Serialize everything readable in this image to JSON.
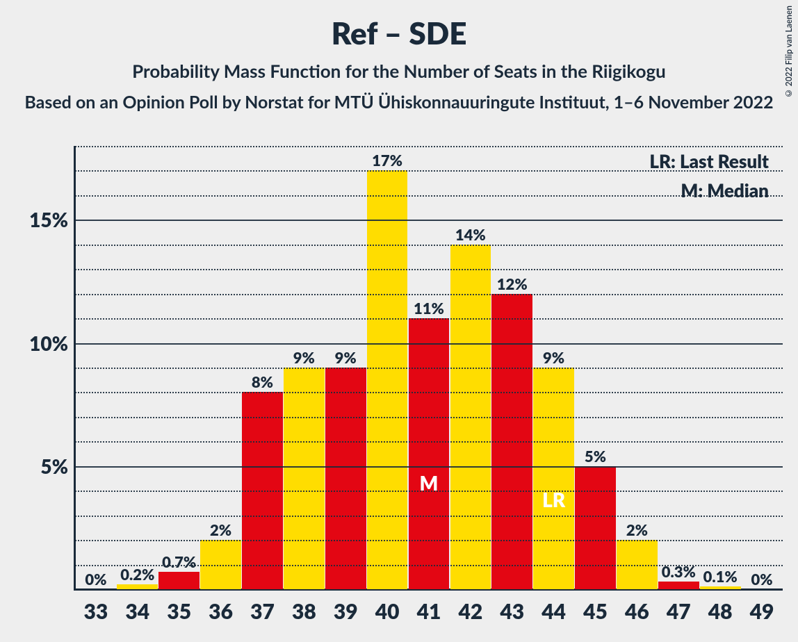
{
  "copyright": "© 2022 Filip van Laenen",
  "title": "Ref – SDE",
  "subtitle": "Probability Mass Function for the Number of Seats in the Riigikogu",
  "subtitle2": "Based on an Opinion Poll by Norstat for MTÜ Ühiskonnauuringute Instituut, 1–6 November 2022",
  "legend": {
    "lr": "LR: Last Result",
    "m": "M: Median"
  },
  "chart": {
    "type": "bar",
    "background_color": "#eeeeee",
    "axis_color": "#1a2a3a",
    "grid_color": "#1a2a3a",
    "text_color": "#1a2a3a",
    "bar_colors": {
      "red": "#e30613",
      "yellow": "#ffdd00"
    },
    "marker_text_color": "#ffffff",
    "y": {
      "min": 0,
      "max": 18,
      "minor_step": 1,
      "major_ticks": [
        5,
        10,
        15
      ],
      "major_labels": [
        "5%",
        "10%",
        "15%"
      ]
    },
    "categories": [
      "33",
      "34",
      "35",
      "36",
      "37",
      "38",
      "39",
      "40",
      "41",
      "42",
      "43",
      "44",
      "45",
      "46",
      "47",
      "48",
      "49"
    ],
    "values": [
      0,
      0.2,
      0.7,
      2,
      8,
      9,
      9,
      17,
      11,
      14,
      12,
      9,
      5,
      2,
      0.3,
      0.1,
      0
    ],
    "value_labels": [
      "0%",
      "0.2%",
      "0.7%",
      "2%",
      "8%",
      "9%",
      "9%",
      "17%",
      "11%",
      "14%",
      "12%",
      "9%",
      "5%",
      "2%",
      "0.3%",
      "0.1%",
      "0%"
    ],
    "color_seq": [
      "red",
      "yellow",
      "red",
      "yellow",
      "red",
      "yellow",
      "red",
      "yellow",
      "red",
      "yellow",
      "red",
      "yellow",
      "red",
      "yellow",
      "red",
      "yellow",
      "red"
    ],
    "markers": {
      "M": 41,
      "LR": 44
    },
    "bar_width_ratio": 0.98,
    "label_fontsize": 22,
    "tick_fontsize": 30,
    "ytick_fontsize": 28,
    "title_fontsize": 44,
    "subtitle_fontsize": 26
  }
}
